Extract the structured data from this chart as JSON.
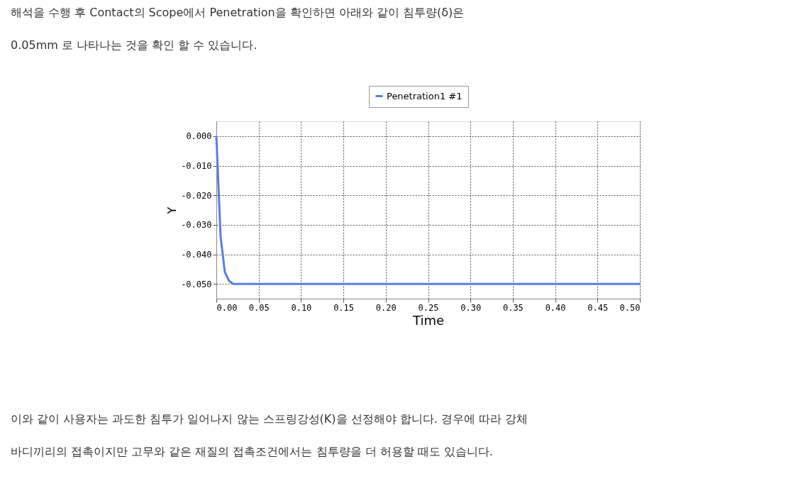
{
  "chart_data": {
    "type": "line",
    "xlabel": "Time",
    "ylabel": "Y",
    "annotations": [
      "해석을 수행 후 Contact의 Scope에서 Penetration을 확인하면 아래와 같이 침투량(δ)은 0.05mm 로 나타나는 것을 확인 할 수 있습니다.",
      "이와 같이 사용자는 과도한 침투가 일어나지 않는 스프링강성(K)을 선정해야 합니다. 경우에 따라 강체 바디끼리의 접촉이지만 고무와 같은 재질의 접촉조건에서는 침투량을 더 허용할 때도 있습니다."
    ],
    "x": [
      0,
      0.005,
      0.01,
      0.015,
      0.02,
      0.5
    ],
    "series": [
      {
        "name": "Penetration1 #1",
        "color": "#5b7fe0",
        "values": [
          0,
          -0.034,
          -0.046,
          -0.049,
          -0.05,
          -0.05
        ]
      }
    ],
    "xlim": [
      0,
      0.5
    ],
    "ylim": [
      -0.055,
      0.005
    ],
    "xticks": [
      {
        "value": 0,
        "label": "0.00"
      },
      {
        "value": 0.05,
        "label": "0.05"
      },
      {
        "value": 0.1,
        "label": "0.10"
      },
      {
        "value": 0.15,
        "label": "0.15"
      },
      {
        "value": 0.2,
        "label": "0.20"
      },
      {
        "value": 0.25,
        "label": "0.25"
      },
      {
        "value": 0.3,
        "label": "0.30"
      },
      {
        "value": 0.35,
        "label": "0.35"
      },
      {
        "value": 0.4,
        "label": "0.40"
      },
      {
        "value": 0.45,
        "label": "0.45"
      },
      {
        "value": 0.5,
        "label": "0.50"
      }
    ],
    "yticks": [
      {
        "value": 0,
        "label": "0.000"
      },
      {
        "value": -0.01,
        "label": "-0.010"
      },
      {
        "value": -0.02,
        "label": "-0.020"
      },
      {
        "value": -0.03,
        "label": "-0.030"
      },
      {
        "value": -0.04,
        "label": "-0.040"
      },
      {
        "value": -0.05,
        "label": "-0.050"
      }
    ],
    "grid": true,
    "legend": "top",
    "marker": "none",
    "line_style": "solid"
  }
}
